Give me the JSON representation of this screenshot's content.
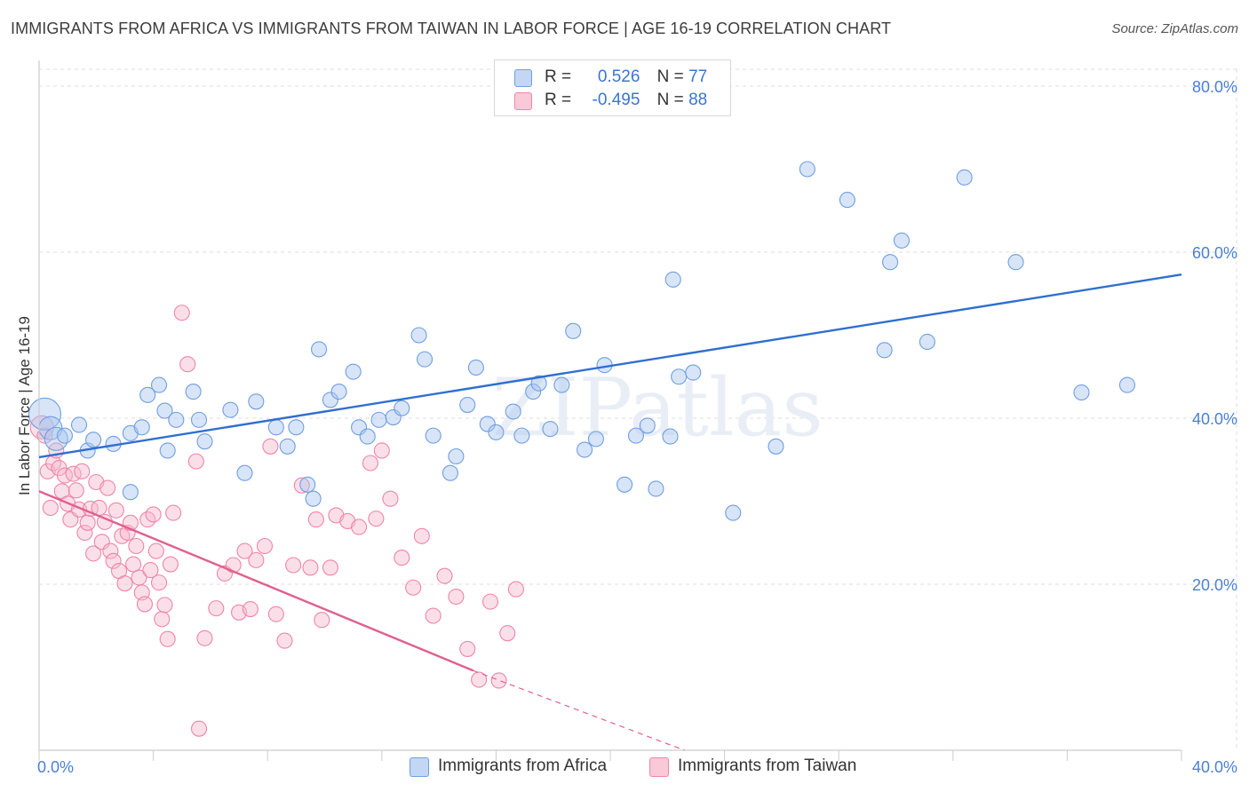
{
  "title": "IMMIGRANTS FROM AFRICA VS IMMIGRANTS FROM TAIWAN IN LABOR FORCE | AGE 16-19 CORRELATION CHART",
  "source": "Source: ZipAtlas.com",
  "watermark": "ZIPatlas",
  "colors": {
    "africa_fill": "#a9c6f0",
    "africa_stroke": "#6f9fe0",
    "africa_line": "#2f6fd0",
    "taiwan_fill": "#f7b8cc",
    "taiwan_stroke": "#ee86a8",
    "taiwan_line": "#e0608e",
    "grid": "#dddddd",
    "tick_label": "#4a7fd6"
  },
  "legend": {
    "rows": [
      {
        "r_label": "R =",
        "r_value": "0.526",
        "n_label": "N =",
        "n_value": "77"
      },
      {
        "r_label": "R =",
        "r_value": "-0.495",
        "n_label": "N =",
        "n_value": "88"
      }
    ]
  },
  "bottom_legend": [
    "Immigrants from Africa",
    "Immigrants from Taiwan"
  ],
  "chart_data": {
    "type": "scatter",
    "title": "IMMIGRANTS FROM AFRICA VS IMMIGRANTS FROM TAIWAN IN LABOR FORCE | AGE 16-19 CORRELATION CHART",
    "xlabel": "",
    "ylabel": "In Labor Force | Age 16-19",
    "xlim": [
      0,
      40
    ],
    "ylim": [
      0,
      80
    ],
    "x_tick_labels": [
      "0.0%",
      "40.0%"
    ],
    "y_ticks": [
      20,
      40,
      60,
      80
    ],
    "y_tick_labels": [
      "20.0%",
      "40.0%",
      "60.0%",
      "80.0%"
    ],
    "grid": true,
    "legend_position": "top-center",
    "series": [
      {
        "name": "Immigrants from Africa",
        "r": 0.526,
        "n": 77,
        "trend": {
          "x": [
            0,
            40
          ],
          "y": [
            35.3,
            57.3
          ],
          "dashed_from": null
        },
        "points": [
          [
            0.2,
            40.5,
            3
          ],
          [
            0.4,
            38.8,
            2
          ],
          [
            0.6,
            37.5,
            2
          ],
          [
            0.9,
            37.9,
            1
          ],
          [
            1.4,
            39.2,
            1
          ],
          [
            1.7,
            36.1,
            1
          ],
          [
            1.9,
            37.4,
            1
          ],
          [
            2.6,
            36.9,
            1
          ],
          [
            3.2,
            38.2,
            1
          ],
          [
            3.2,
            31.1,
            1
          ],
          [
            3.6,
            38.9,
            1
          ],
          [
            3.8,
            42.8,
            1
          ],
          [
            4.2,
            44.0,
            1
          ],
          [
            4.4,
            40.9,
            1
          ],
          [
            4.8,
            39.8,
            1
          ],
          [
            4.5,
            36.1,
            1
          ],
          [
            5.4,
            43.2,
            1
          ],
          [
            5.6,
            39.8,
            1
          ],
          [
            5.8,
            37.2,
            1
          ],
          [
            6.7,
            41.0,
            1
          ],
          [
            7.2,
            33.4,
            1
          ],
          [
            7.6,
            42.0,
            1
          ],
          [
            8.3,
            38.9,
            1
          ],
          [
            8.7,
            36.6,
            1
          ],
          [
            9.0,
            38.9,
            1
          ],
          [
            9.4,
            32.0,
            1
          ],
          [
            9.6,
            30.3,
            1
          ],
          [
            9.8,
            48.3,
            1
          ],
          [
            10.2,
            42.2,
            1
          ],
          [
            10.5,
            43.2,
            1
          ],
          [
            11.0,
            45.6,
            1
          ],
          [
            11.2,
            38.9,
            1
          ],
          [
            11.5,
            37.8,
            1
          ],
          [
            11.9,
            39.8,
            1
          ],
          [
            12.4,
            40.1,
            1
          ],
          [
            12.7,
            41.2,
            1
          ],
          [
            13.3,
            50.0,
            1
          ],
          [
            13.5,
            47.1,
            1
          ],
          [
            13.8,
            37.9,
            1
          ],
          [
            14.4,
            33.4,
            1
          ],
          [
            14.6,
            35.4,
            1
          ],
          [
            15.0,
            41.6,
            1
          ],
          [
            15.3,
            46.1,
            1
          ],
          [
            15.7,
            39.3,
            1
          ],
          [
            16.0,
            38.3,
            1
          ],
          [
            16.6,
            40.8,
            1
          ],
          [
            16.9,
            37.9,
            1
          ],
          [
            17.3,
            43.2,
            1
          ],
          [
            17.5,
            44.2,
            1
          ],
          [
            17.9,
            38.7,
            1
          ],
          [
            18.3,
            44.0,
            1
          ],
          [
            18.7,
            50.5,
            1
          ],
          [
            19.1,
            36.2,
            1
          ],
          [
            19.5,
            37.5,
            1
          ],
          [
            19.8,
            46.4,
            1
          ],
          [
            20.5,
            32.0,
            1
          ],
          [
            20.9,
            37.9,
            1
          ],
          [
            21.3,
            39.1,
            1
          ],
          [
            21.6,
            31.5,
            1
          ],
          [
            22.1,
            37.8,
            1
          ],
          [
            22.2,
            56.7,
            1
          ],
          [
            22.4,
            45.0,
            1
          ],
          [
            22.9,
            45.5,
            1
          ],
          [
            24.3,
            28.6,
            1
          ],
          [
            25.8,
            36.6,
            1
          ],
          [
            26.9,
            70.0,
            1
          ],
          [
            28.3,
            66.3,
            1
          ],
          [
            29.6,
            48.2,
            1
          ],
          [
            29.8,
            58.8,
            1
          ],
          [
            30.2,
            61.4,
            1
          ],
          [
            31.1,
            49.2,
            1
          ],
          [
            32.4,
            69.0,
            1
          ],
          [
            34.2,
            58.8,
            1
          ],
          [
            36.5,
            43.1,
            1
          ],
          [
            38.1,
            44.0,
            1
          ]
        ]
      },
      {
        "name": "Immigrants from Taiwan",
        "r": -0.495,
        "n": 88,
        "trend": {
          "x": [
            0,
            15.2,
            22.6
          ],
          "y": [
            31.2,
            9.6,
            0
          ],
          "dashed_from": 15.2
        },
        "points": [
          [
            0.1,
            38.9,
            2
          ],
          [
            0.2,
            37.9,
            1
          ],
          [
            0.3,
            33.6,
            1
          ],
          [
            0.4,
            29.2,
            1
          ],
          [
            0.5,
            34.6,
            1
          ],
          [
            0.6,
            36.1,
            1
          ],
          [
            0.7,
            34.0,
            1
          ],
          [
            0.8,
            31.2,
            1
          ],
          [
            0.9,
            33.1,
            1
          ],
          [
            1.0,
            29.7,
            1
          ],
          [
            1.1,
            27.8,
            1
          ],
          [
            1.2,
            33.3,
            1
          ],
          [
            1.3,
            31.3,
            1
          ],
          [
            1.4,
            29.0,
            1
          ],
          [
            1.5,
            33.6,
            1
          ],
          [
            1.6,
            26.2,
            1
          ],
          [
            1.7,
            27.4,
            1
          ],
          [
            1.8,
            29.1,
            1
          ],
          [
            1.9,
            23.7,
            1
          ],
          [
            2.0,
            32.3,
            1
          ],
          [
            2.1,
            29.2,
            1
          ],
          [
            2.2,
            25.1,
            1
          ],
          [
            2.3,
            27.5,
            1
          ],
          [
            2.4,
            31.6,
            1
          ],
          [
            2.5,
            24.0,
            1
          ],
          [
            2.6,
            22.8,
            1
          ],
          [
            2.7,
            28.9,
            1
          ],
          [
            2.8,
            21.6,
            1
          ],
          [
            2.9,
            25.8,
            1
          ],
          [
            3.0,
            20.1,
            1
          ],
          [
            3.1,
            26.2,
            1
          ],
          [
            3.2,
            27.4,
            1
          ],
          [
            3.3,
            22.4,
            1
          ],
          [
            3.4,
            24.6,
            1
          ],
          [
            3.5,
            20.8,
            1
          ],
          [
            3.6,
            19.0,
            1
          ],
          [
            3.7,
            17.6,
            1
          ],
          [
            3.8,
            27.8,
            1
          ],
          [
            3.9,
            21.7,
            1
          ],
          [
            4.0,
            28.4,
            1
          ],
          [
            4.1,
            24.0,
            1
          ],
          [
            4.2,
            20.2,
            1
          ],
          [
            4.3,
            15.8,
            1
          ],
          [
            4.4,
            17.5,
            1
          ],
          [
            4.5,
            13.4,
            1
          ],
          [
            4.6,
            22.4,
            1
          ],
          [
            4.7,
            28.6,
            1
          ],
          [
            5.0,
            52.7,
            1
          ],
          [
            5.2,
            46.5,
            1
          ],
          [
            5.5,
            34.8,
            1
          ],
          [
            5.8,
            13.5,
            1
          ],
          [
            6.2,
            17.1,
            1
          ],
          [
            6.5,
            21.3,
            1
          ],
          [
            6.8,
            22.3,
            1
          ],
          [
            7.0,
            16.6,
            1
          ],
          [
            7.2,
            24.0,
            1
          ],
          [
            7.4,
            17.0,
            1
          ],
          [
            7.6,
            22.9,
            1
          ],
          [
            7.9,
            24.6,
            1
          ],
          [
            8.1,
            36.6,
            1
          ],
          [
            8.3,
            16.4,
            1
          ],
          [
            8.6,
            13.2,
            1
          ],
          [
            8.9,
            22.3,
            1
          ],
          [
            9.2,
            31.9,
            1
          ],
          [
            9.5,
            22.0,
            1
          ],
          [
            9.7,
            27.8,
            1
          ],
          [
            9.9,
            15.7,
            1
          ],
          [
            10.2,
            22.0,
            1
          ],
          [
            10.4,
            28.3,
            1
          ],
          [
            10.8,
            27.6,
            1
          ],
          [
            11.2,
            26.9,
            1
          ],
          [
            11.6,
            34.6,
            1
          ],
          [
            11.8,
            27.9,
            1
          ],
          [
            12.0,
            36.1,
            1
          ],
          [
            12.3,
            30.3,
            1
          ],
          [
            12.7,
            23.2,
            1
          ],
          [
            13.1,
            19.6,
            1
          ],
          [
            13.4,
            25.8,
            1
          ],
          [
            13.8,
            16.2,
            1
          ],
          [
            14.2,
            21.0,
            1
          ],
          [
            14.6,
            18.5,
            1
          ],
          [
            15.0,
            12.2,
            1
          ],
          [
            15.4,
            8.5,
            1
          ],
          [
            15.8,
            17.9,
            1
          ],
          [
            16.1,
            8.4,
            1
          ],
          [
            16.4,
            14.1,
            1
          ],
          [
            16.7,
            19.4,
            1
          ],
          [
            5.6,
            2.6,
            1
          ]
        ]
      }
    ]
  }
}
